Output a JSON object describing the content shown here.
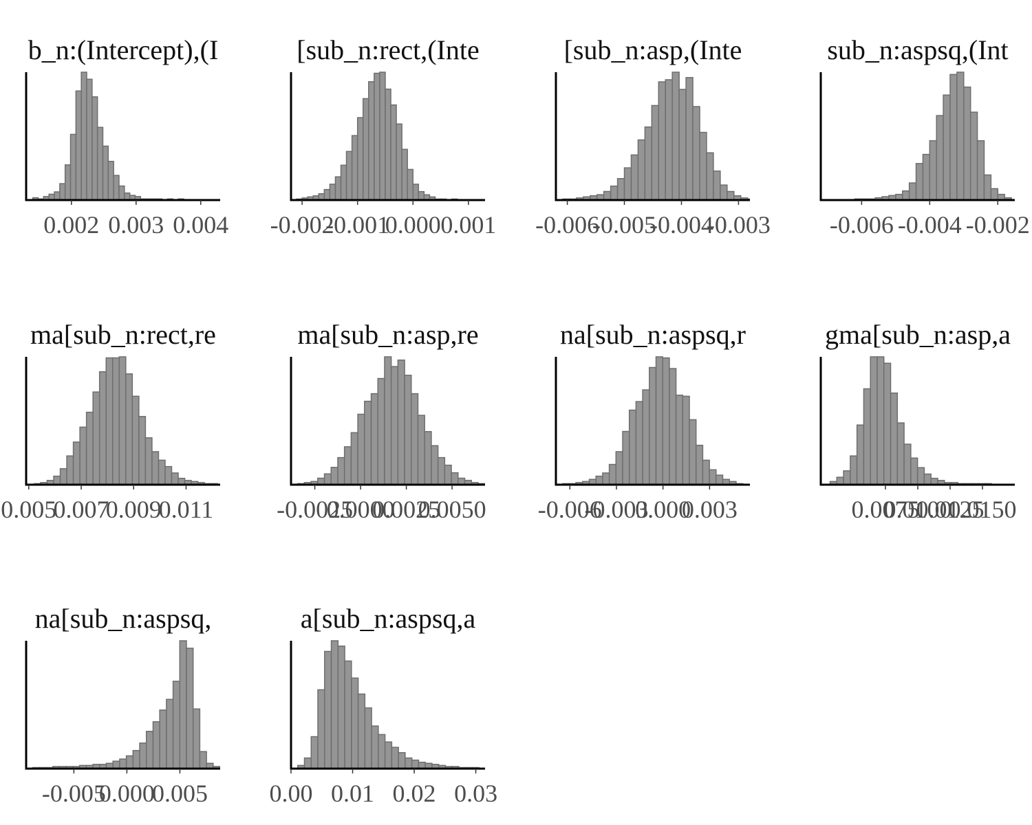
{
  "chart_data": [
    {
      "type": "bar",
      "title": "b_n:(Intercept),(I",
      "xlim": [
        0.0013,
        0.0043
      ],
      "xticks": [
        0.002,
        0.003,
        0.004
      ],
      "xtick_labels": [
        "0.002",
        "0.003",
        "0.004"
      ],
      "bin_start": 0.00132,
      "bin_width": 8.33e-05,
      "values": [
        0,
        2,
        1,
        3,
        5,
        7,
        14,
        30,
        56,
        93,
        109,
        103,
        88,
        62,
        46,
        33,
        21,
        12,
        6,
        4,
        3,
        1,
        1,
        1,
        1,
        0,
        1,
        0,
        1
      ]
    },
    {
      "type": "bar",
      "title": "[sub_n:rect,(Inte",
      "xlim": [
        -0.0022,
        0.0013
      ],
      "xticks": [
        -0.002,
        -0.001,
        0.0,
        0.001
      ],
      "xtick_labels": [
        "-0.002",
        "-0.001",
        "0.000",
        "0.001"
      ],
      "bin_start": -0.0021,
      "bin_width": 0.0001,
      "values": [
        1,
        2,
        3,
        4,
        6,
        10,
        15,
        22,
        33,
        46,
        61,
        78,
        96,
        112,
        120,
        121,
        105,
        90,
        72,
        48,
        29,
        15,
        8,
        5,
        3,
        1,
        1,
        0,
        1
      ]
    },
    {
      "type": "bar",
      "title": "[sub_n:asp,(Inte",
      "xlim": [
        -0.0062,
        -0.0028
      ],
      "xticks": [
        -0.006,
        -0.005,
        -0.004,
        -0.003
      ],
      "xtick_labels": [
        "-0.006",
        "-0.005",
        "-0.004",
        "-0.003"
      ],
      "bin_start": -0.0062,
      "bin_width": 0.00012,
      "values": [
        0,
        1,
        1,
        2,
        3,
        4,
        5,
        8,
        13,
        20,
        30,
        42,
        56,
        68,
        88,
        110,
        112,
        119,
        103,
        114,
        87,
        63,
        44,
        27,
        14,
        8,
        4,
        2,
        1
      ]
    },
    {
      "type": "bar",
      "title": "sub_n:aspsq,(Int",
      "xlim": [
        -0.0072,
        -0.0015
      ],
      "xticks": [
        -0.006,
        -0.004,
        -0.002
      ],
      "xtick_labels": [
        "-0.006",
        "-0.004",
        "-0.002"
      ],
      "bin_start": -0.0072,
      "bin_width": 0.0002,
      "values": [
        0,
        0,
        0,
        0,
        0,
        1,
        1,
        1,
        2,
        3,
        4,
        5,
        8,
        15,
        32,
        40,
        52,
        74,
        92,
        110,
        112,
        99,
        77,
        52,
        22,
        10,
        5,
        2,
        0
      ]
    },
    {
      "type": "bar",
      "title": "ma[sub_n:rect,re",
      "xlim": [
        0.0049,
        0.0123
      ],
      "xticks": [
        0.005,
        0.007,
        0.009,
        0.011
      ],
      "xtick_labels": [
        "0.005",
        "0.007",
        "0.009",
        "0.011"
      ],
      "bin_start": 0.00495,
      "bin_width": 0.00025,
      "values": [
        0,
        1,
        2,
        4,
        8,
        15,
        27,
        40,
        54,
        68,
        87,
        106,
        119,
        119,
        120,
        104,
        83,
        64,
        44,
        31,
        23,
        17,
        11,
        6,
        4,
        3,
        2,
        1,
        1
      ]
    },
    {
      "type": "bar",
      "title": "ma[sub_n:asp,re",
      "xlim": [
        -0.0038,
        0.0068
      ],
      "xticks": [
        -0.0025,
        0.0,
        0.0025,
        0.005
      ],
      "xtick_labels": [
        "-0.0025",
        "0.0000",
        "0.0025",
        "0.0050"
      ],
      "bin_start": -0.0038,
      "bin_width": 0.000365,
      "values": [
        0,
        1,
        2,
        3,
        6,
        10,
        16,
        25,
        35,
        48,
        65,
        77,
        84,
        98,
        118,
        109,
        115,
        101,
        84,
        64,
        49,
        36,
        25,
        18,
        11,
        6,
        4,
        2,
        1
      ]
    },
    {
      "type": "bar",
      "title": "na[sub_n:aspsq,r",
      "xlim": [
        -0.0069,
        0.0056
      ],
      "xticks": [
        -0.006,
        -0.003,
        0.0,
        0.003
      ],
      "xtick_labels": [
        "-0.006",
        "-0.003",
        "0.000",
        "0.003"
      ],
      "bin_start": -0.0069,
      "bin_width": 0.00043,
      "values": [
        0,
        1,
        1,
        2,
        3,
        5,
        8,
        11,
        19,
        31,
        50,
        70,
        78,
        89,
        110,
        120,
        119,
        109,
        84,
        83,
        61,
        37,
        23,
        14,
        9,
        5,
        3,
        1,
        0
      ]
    },
    {
      "type": "bar",
      "title": "gma[sub_n:asp,a",
      "xlim": [
        0.0025,
        0.0175
      ],
      "xticks": [
        0.0075,
        0.01,
        0.0125,
        0.015
      ],
      "xtick_labels": [
        "0.0075",
        "0.0100",
        "0.0125",
        "0.0150"
      ],
      "bin_start": 0.0027,
      "bin_width": 0.00052,
      "values": [
        0,
        3,
        7,
        13,
        27,
        56,
        90,
        120,
        120,
        114,
        86,
        58,
        38,
        25,
        16,
        10,
        6,
        4,
        2,
        2,
        1,
        1,
        1,
        1,
        1,
        0,
        0,
        0,
        0
      ]
    },
    {
      "type": "bar",
      "title": "na[sub_n:aspsq,",
      "xlim": [
        -0.0095,
        0.0088
      ],
      "xticks": [
        -0.005,
        0.0,
        0.005
      ],
      "xtick_labels": [
        "-0.005",
        "0.000",
        "0.005"
      ],
      "bin_start": -0.0095,
      "bin_width": 0.00063,
      "values": [
        0,
        1,
        1,
        1,
        2,
        2,
        2,
        2,
        3,
        3,
        4,
        4,
        5,
        7,
        9,
        12,
        17,
        24,
        35,
        44,
        55,
        65,
        82,
        120,
        113,
        56,
        16,
        5,
        2
      ]
    },
    {
      "type": "bar",
      "title": "a[sub_n:aspsq,a",
      "xlim": [
        0.0,
        0.0315
      ],
      "xticks": [
        0.0,
        0.01,
        0.02,
        0.03
      ],
      "xtick_labels": [
        "0.00",
        "0.01",
        "0.02",
        "0.03"
      ],
      "bin_start": 0.0,
      "bin_width": 0.00109,
      "values": [
        0,
        3,
        10,
        30,
        74,
        110,
        120,
        115,
        101,
        85,
        70,
        57,
        40,
        32,
        25,
        20,
        15,
        10,
        8,
        6,
        5,
        4,
        3,
        2,
        2,
        1,
        1,
        1,
        0
      ]
    }
  ]
}
